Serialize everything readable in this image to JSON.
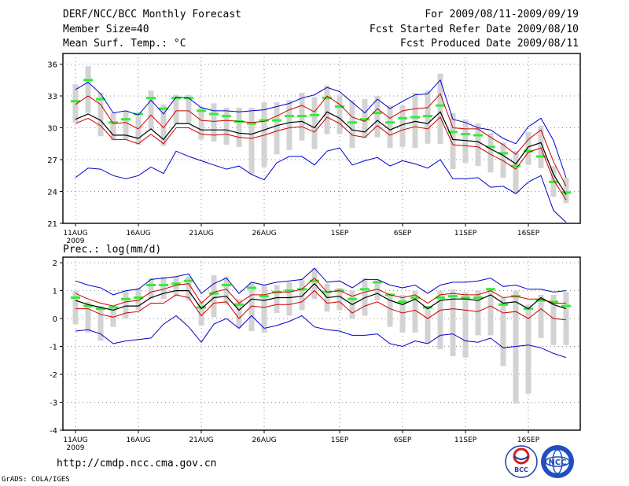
{
  "header": {
    "title": "DERF/NCC/BCC Monthly Forecast",
    "member_size": "Member Size=40",
    "variable": "Mean Surf. Temp.: °C",
    "forecast_period": "For 2009/08/11-2009/09/19",
    "start_date": "Fcst Started Refer Date 2009/08/10",
    "produced_date": "Fcst Produced Date 2009/08/11"
  },
  "footer": {
    "url": "http://cmdp.ncc.cma.gov.cn",
    "credit": "GrADS: COLA/IGES",
    "logo_bcc_text": "BCC",
    "logo_ncc_text": "NCC"
  },
  "colors": {
    "ensemble_mean": "#000000",
    "spread_inner": "#cc0000",
    "spread_outer": "#0000cc",
    "climatology": "#33ee33",
    "range_bar": "#d3d3d3",
    "grid": "#888888"
  },
  "chart_data": [
    {
      "type": "line",
      "title": "Mean Surf. Temp.: °C",
      "xlabel": "",
      "ylabel": "",
      "grid": true,
      "x_start": "2009-08-11",
      "x_tick_labels": [
        "11AUG",
        "16AUG",
        "21AUG",
        "26AUG",
        "1SEP",
        "6SEP",
        "11SEP",
        "16SEP"
      ],
      "x_tick_days": [
        0,
        5,
        10,
        15,
        21,
        26,
        31,
        36
      ],
      "x_year_label": "2009",
      "xlim": [
        0,
        39
      ],
      "ylim": [
        21,
        37
      ],
      "y_ticks": [
        21,
        24,
        27,
        30,
        33,
        36
      ],
      "series": [
        {
          "name": "upper",
          "role": "outer",
          "values": [
            33.6,
            34.3,
            33.2,
            31.4,
            31.6,
            31.2,
            32.6,
            31.3,
            32.9,
            32.8,
            31.9,
            31.6,
            31.6,
            31.5,
            31.6,
            31.7,
            32.0,
            32.3,
            32.8,
            33.1,
            33.8,
            33.4,
            32.4,
            31.4,
            32.7,
            31.8,
            32.5,
            33.1,
            33.2,
            34.5,
            30.8,
            30.5,
            30.0,
            29.8,
            29.0,
            28.5,
            30.1,
            30.9,
            28.8,
            25.3
          ]
        },
        {
          "name": "upper_sd",
          "role": "inner",
          "values": [
            32.2,
            33.0,
            32.2,
            30.4,
            30.5,
            29.9,
            31.2,
            30.0,
            31.6,
            31.6,
            30.7,
            30.6,
            30.7,
            30.6,
            30.5,
            30.6,
            31.1,
            31.7,
            32.1,
            31.5,
            33.0,
            32.2,
            31.0,
            30.6,
            31.8,
            30.9,
            31.6,
            31.8,
            31.9,
            33.2,
            30.0,
            29.9,
            29.9,
            29.1,
            28.4,
            27.5,
            28.9,
            29.8,
            26.8,
            24.5
          ]
        },
        {
          "name": "mean",
          "role": "mean",
          "values": [
            30.8,
            31.3,
            30.7,
            29.3,
            29.3,
            29.0,
            29.9,
            28.9,
            30.4,
            30.4,
            29.8,
            29.8,
            29.8,
            29.5,
            29.4,
            29.8,
            30.2,
            30.5,
            30.6,
            30.0,
            31.5,
            30.9,
            29.8,
            29.6,
            30.7,
            29.8,
            30.3,
            30.6,
            30.4,
            31.5,
            28.9,
            28.8,
            28.7,
            28.0,
            27.4,
            26.6,
            28.2,
            28.6,
            25.6,
            23.7
          ]
        },
        {
          "name": "lower_sd",
          "role": "inner",
          "values": [
            30.4,
            30.9,
            30.2,
            28.9,
            28.9,
            28.5,
            29.4,
            28.5,
            30.0,
            30.0,
            29.4,
            29.3,
            29.4,
            29.1,
            29.0,
            29.3,
            29.7,
            30.0,
            30.1,
            29.6,
            31.0,
            30.4,
            29.3,
            29.1,
            30.2,
            29.3,
            29.8,
            30.1,
            29.9,
            31.0,
            28.4,
            28.3,
            28.2,
            27.5,
            26.9,
            26.1,
            27.7,
            28.1,
            25.1,
            23.2
          ]
        },
        {
          "name": "lower",
          "role": "outer",
          "values": [
            25.3,
            26.2,
            26.1,
            25.5,
            25.2,
            25.5,
            26.3,
            25.7,
            27.8,
            27.3,
            26.9,
            26.5,
            26.1,
            26.4,
            25.6,
            25.1,
            26.7,
            27.3,
            27.3,
            26.5,
            27.8,
            28.1,
            26.5,
            26.9,
            27.2,
            26.4,
            26.9,
            26.6,
            26.2,
            27.0,
            25.2,
            25.2,
            25.3,
            24.4,
            24.5,
            23.8,
            24.9,
            25.5,
            22.2,
            21.1
          ]
        }
      ],
      "climatology": [
        32.5,
        34.5,
        32.7,
        30.5,
        30.8,
        31.3,
        32.8,
        31.8,
        32.8,
        32.8,
        31.6,
        31.3,
        31.1,
        30.6,
        30.4,
        30.7,
        30.7,
        31.1,
        31.1,
        31.2,
        32.8,
        32.0,
        30.5,
        30.8,
        31.4,
        30.5,
        30.9,
        31.0,
        31.1,
        32.1,
        29.6,
        29.4,
        29.3,
        28.2,
        27.6,
        26.4,
        27.8,
        27.3,
        24.9,
        23.9
      ],
      "range": [
        [
          30.5,
          34.1
        ],
        [
          31.4,
          35.8
        ],
        [
          29.2,
          33.3
        ],
        [
          28.8,
          31.4
        ],
        [
          28.9,
          31.6
        ],
        [
          28.4,
          31.1
        ],
        [
          29.8,
          33.5
        ],
        [
          28.3,
          32.2
        ],
        [
          30.4,
          33.1
        ],
        [
          30.4,
          33.1
        ],
        [
          28.9,
          32.0
        ],
        [
          28.7,
          32.3
        ],
        [
          28.4,
          31.9
        ],
        [
          28.2,
          31.9
        ],
        [
          25.6,
          31.9
        ],
        [
          26.3,
          32.4
        ],
        [
          27.5,
          32.4
        ],
        [
          27.9,
          32.6
        ],
        [
          28.8,
          33.3
        ],
        [
          28.0,
          32.9
        ],
        [
          29.4,
          34.0
        ],
        [
          29.4,
          33.1
        ],
        [
          28.1,
          32.6
        ],
        [
          29.0,
          32.7
        ],
        [
          29.1,
          33.0
        ],
        [
          28.1,
          32.1
        ],
        [
          28.2,
          32.1
        ],
        [
          28.1,
          33.3
        ],
        [
          28.5,
          33.5
        ],
        [
          28.5,
          35.1
        ],
        [
          26.1,
          31.4
        ],
        [
          26.7,
          30.8
        ],
        [
          26.4,
          30.4
        ],
        [
          25.8,
          29.5
        ],
        [
          25.3,
          28.6
        ],
        [
          23.8,
          27.8
        ],
        [
          26.5,
          29.6
        ],
        [
          26.2,
          30.2
        ],
        [
          23.5,
          26.4
        ],
        [
          22.9,
          25.3
        ]
      ]
    },
    {
      "type": "line",
      "title": "Prec.: log(mm/d)",
      "xlabel": "",
      "ylabel": "",
      "grid": true,
      "x_start": "2009-08-11",
      "x_tick_labels": [
        "11AUG",
        "16AUG",
        "21AUG",
        "26AUG",
        "1SEP",
        "6SEP",
        "11SEP",
        "16SEP"
      ],
      "x_tick_days": [
        0,
        5,
        10,
        15,
        21,
        26,
        31,
        36
      ],
      "x_year_label": "2009",
      "xlim": [
        0,
        39
      ],
      "ylim": [
        -4,
        2.2
      ],
      "y_ticks": [
        -4,
        -3,
        -2,
        -1,
        0,
        1,
        2
      ],
      "series": [
        {
          "name": "upper",
          "role": "outer",
          "values": [
            1.35,
            1.2,
            1.1,
            0.85,
            1.0,
            1.05,
            1.4,
            1.45,
            1.5,
            1.6,
            0.9,
            1.25,
            1.45,
            0.9,
            1.3,
            1.2,
            1.3,
            1.35,
            1.4,
            1.8,
            1.3,
            1.35,
            1.1,
            1.4,
            1.4,
            1.2,
            1.1,
            1.2,
            0.9,
            1.2,
            1.3,
            1.3,
            1.35,
            1.45,
            1.15,
            1.2,
            1.05,
            1.05,
            0.95,
            1.0
          ]
        },
        {
          "name": "upper_sd",
          "role": "inner",
          "values": [
            0.9,
            0.7,
            0.55,
            0.45,
            0.6,
            0.65,
            0.95,
            1.05,
            1.2,
            1.25,
            0.55,
            0.95,
            1.05,
            0.55,
            0.85,
            0.85,
            0.95,
            0.95,
            1.05,
            1.45,
            0.95,
            1.0,
            0.8,
            0.95,
            1.05,
            0.85,
            0.75,
            0.85,
            0.55,
            0.85,
            0.9,
            0.85,
            0.85,
            1.0,
            0.75,
            0.8,
            0.7,
            0.7,
            0.55,
            0.55
          ]
        },
        {
          "name": "mean",
          "role": "mean",
          "values": [
            0.65,
            0.5,
            0.4,
            0.3,
            0.45,
            0.45,
            0.75,
            0.9,
            1.0,
            1.0,
            0.35,
            0.75,
            0.8,
            0.3,
            0.7,
            0.65,
            0.75,
            0.75,
            0.8,
            1.25,
            0.75,
            0.8,
            0.5,
            0.75,
            0.9,
            0.65,
            0.5,
            0.7,
            0.35,
            0.65,
            0.7,
            0.7,
            0.65,
            0.85,
            0.55,
            0.6,
            0.35,
            0.75,
            0.5,
            0.35
          ]
        },
        {
          "name": "lower_sd",
          "role": "inner",
          "values": [
            0.35,
            0.35,
            0.15,
            0.05,
            0.2,
            0.25,
            0.55,
            0.55,
            0.85,
            0.75,
            0.1,
            0.55,
            0.6,
            0.0,
            0.45,
            0.4,
            0.5,
            0.5,
            0.6,
            1.0,
            0.55,
            0.6,
            0.2,
            0.45,
            0.6,
            0.35,
            0.2,
            0.3,
            0.0,
            0.3,
            0.35,
            0.3,
            0.25,
            0.45,
            0.2,
            0.25,
            0.0,
            0.35,
            0.0,
            -0.05
          ]
        },
        {
          "name": "lower",
          "role": "outer",
          "values": [
            -0.45,
            -0.4,
            -0.55,
            -0.9,
            -0.8,
            -0.75,
            -0.7,
            -0.2,
            0.1,
            -0.3,
            -0.85,
            -0.2,
            0.0,
            -0.35,
            0.1,
            -0.35,
            -0.25,
            -0.1,
            0.1,
            -0.3,
            -0.4,
            -0.45,
            -0.6,
            -0.6,
            -0.55,
            -0.9,
            -1.0,
            -0.8,
            -0.9,
            -0.6,
            -0.55,
            -0.8,
            -0.85,
            -0.7,
            -1.05,
            -1.0,
            -0.95,
            -1.05,
            -1.25,
            -1.4
          ]
        }
      ],
      "climatology": [
        0.75,
        0.45,
        0.35,
        0.4,
        0.7,
        0.75,
        1.2,
        1.2,
        1.25,
        1.35,
        0.4,
        0.9,
        1.2,
        0.5,
        1.1,
        0.8,
        0.95,
        1.0,
        1.05,
        1.35,
        0.95,
        1.0,
        0.7,
        1.05,
        1.3,
        0.85,
        0.6,
        0.75,
        0.4,
        0.75,
        0.8,
        0.75,
        0.75,
        1.05,
        0.5,
        0.8,
        0.35,
        0.65,
        0.6,
        0.45
      ],
      "range": [
        [
          -0.2,
          1.0
        ],
        [
          -0.5,
          0.6
        ],
        [
          -0.8,
          0.45
        ],
        [
          -0.3,
          0.4
        ],
        [
          0.0,
          1.0
        ],
        [
          0.3,
          1.1
        ],
        [
          0.7,
          1.45
        ],
        [
          0.7,
          1.5
        ],
        [
          0.8,
          1.5
        ],
        [
          0.65,
          1.5
        ],
        [
          -0.25,
          0.6
        ],
        [
          0.05,
          1.55
        ],
        [
          0.5,
          1.5
        ],
        [
          -0.35,
          0.7
        ],
        [
          -0.45,
          1.3
        ],
        [
          -0.5,
          1.2
        ],
        [
          0.2,
          1.2
        ],
        [
          0.1,
          1.3
        ],
        [
          0.3,
          1.4
        ],
        [
          0.7,
          1.8
        ],
        [
          0.25,
          1.25
        ],
        [
          0.3,
          1.1
        ],
        [
          0.0,
          1.0
        ],
        [
          0.1,
          1.45
        ],
        [
          0.65,
          1.4
        ],
        [
          -0.3,
          0.9
        ],
        [
          -0.5,
          0.85
        ],
        [
          -0.5,
          1.0
        ],
        [
          -0.9,
          0.45
        ],
        [
          -1.1,
          1.0
        ],
        [
          -1.35,
          1.05
        ],
        [
          -1.4,
          0.95
        ],
        [
          -0.6,
          1.0
        ],
        [
          -0.6,
          1.1
        ],
        [
          -1.7,
          0.75
        ],
        [
          -3.05,
          1.0
        ],
        [
          -2.7,
          0.5
        ],
        [
          -0.7,
          0.85
        ],
        [
          -0.95,
          0.85
        ],
        [
          -0.95,
          0.95
        ]
      ]
    }
  ]
}
